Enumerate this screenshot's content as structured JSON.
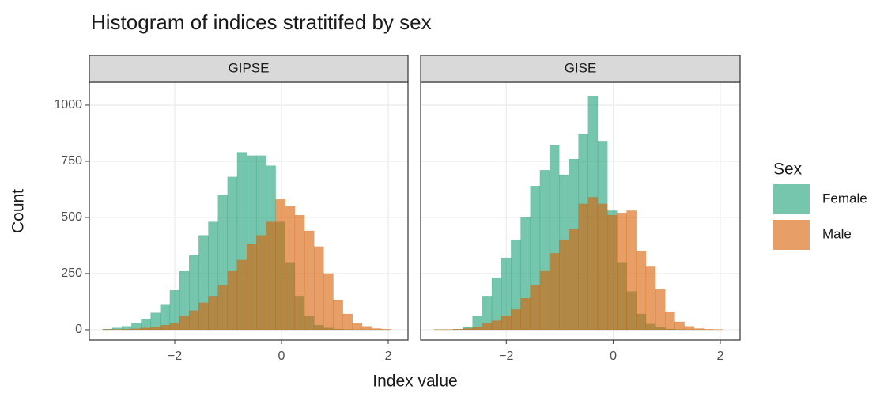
{
  "chart_data": {
    "type": "histogram",
    "title": "Histogram of indices stratitifed by sex",
    "x_label": "Index value",
    "y_label": "Count",
    "legend": {
      "title": "Sex",
      "entries": [
        {
          "name": "Female",
          "color": "#1b9e77"
        },
        {
          "name": "Male",
          "color": "#d95f02"
        }
      ]
    },
    "bar_opacity": 0.6,
    "grid": true,
    "xlim": [
      -3.6,
      2.37
    ],
    "ylim": [
      -46,
      1102
    ],
    "xticks": [
      {
        "value": -2,
        "label": "−2"
      },
      0,
      2
    ],
    "yticks": [
      0,
      250,
      500,
      750,
      1000
    ],
    "bins": [
      -3.35,
      -3.17,
      -2.99,
      -2.81,
      -2.63,
      -2.45,
      -2.27,
      -2.09,
      -1.91,
      -1.73,
      -1.55,
      -1.37,
      -1.19,
      -1.01,
      -0.83,
      -0.65,
      -0.47,
      -0.29,
      -0.11,
      0.07,
      0.25,
      0.43,
      0.61,
      0.79,
      0.97,
      1.15,
      1.33,
      1.51,
      1.69,
      1.87,
      2.05
    ],
    "facets": [
      {
        "title": "GIPSE",
        "series": [
          {
            "name": "Female",
            "color": "#1b9e77",
            "values": [
              3,
              8,
              15,
              30,
              45,
              75,
              110,
              175,
              260,
              330,
              420,
              480,
              600,
              680,
              790,
              775,
              775,
              730,
              480,
              300,
              150,
              60,
              20,
              8,
              3,
              1,
              0,
              0,
              0,
              0
            ]
          },
          {
            "name": "Male",
            "color": "#d95f02",
            "values": [
              1,
              1,
              2,
              4,
              8,
              12,
              20,
              30,
              60,
              85,
              120,
              150,
              200,
              260,
              310,
              380,
              420,
              480,
              580,
              550,
              510,
              440,
              370,
              250,
              130,
              70,
              30,
              15,
              5,
              2
            ]
          }
        ]
      },
      {
        "title": "GISE",
        "series": [
          {
            "name": "Female",
            "color": "#1b9e77",
            "values": [
              0,
              1,
              2,
              10,
              60,
              150,
              230,
              320,
              400,
              500,
              640,
              710,
              820,
              690,
              760,
              870,
              1040,
              840,
              530,
              300,
              170,
              70,
              25,
              10,
              3,
              1,
              0,
              0,
              0,
              0
            ]
          },
          {
            "name": "Male",
            "color": "#d95f02",
            "values": [
              1,
              1,
              2,
              5,
              12,
              30,
              40,
              60,
              90,
              140,
              200,
              260,
              340,
              400,
              450,
              560,
              590,
              560,
              510,
              520,
              530,
              350,
              280,
              180,
              80,
              35,
              15,
              5,
              2,
              1
            ]
          }
        ]
      }
    ]
  }
}
